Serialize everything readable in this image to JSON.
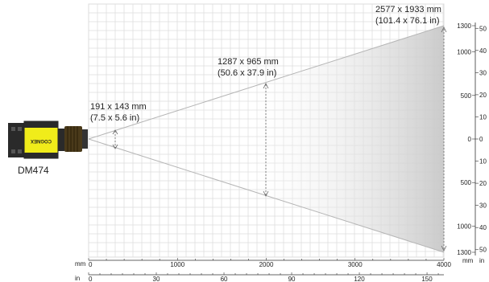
{
  "camera": {
    "model_label": "DM474",
    "brand_text": "COGNEX"
  },
  "fov_annotations": [
    {
      "distance_mm": 60,
      "size_mm": "191 x 143 mm",
      "size_in": "(7.5 x 5.6 in)"
    },
    {
      "distance_mm": 2000,
      "size_mm": "1287 x 965 mm",
      "size_in": "(50.6 x 37.9 in)"
    },
    {
      "distance_mm": 4000,
      "size_mm": "2577 x 1933 mm",
      "size_in": "(101.4 x 76.1 in)"
    }
  ],
  "bottom_axis_mm": {
    "unit_label": "mm",
    "range": [
      0,
      4000
    ],
    "ticks": [
      "0",
      "1000",
      "2000",
      "3000",
      "4000"
    ]
  },
  "bottom_axis_in": {
    "unit_label": "in",
    "ticks": [
      "0",
      "30",
      "60",
      "90",
      "120",
      "150"
    ]
  },
  "right_axis_mm": {
    "unit_label": "mm",
    "ticks_top": [
      "1300",
      "1000",
      "500",
      "0",
      "500",
      "1000",
      "1300"
    ]
  },
  "right_axis_in": {
    "unit_label": "in",
    "ticks": [
      "50",
      "40",
      "30",
      "20",
      "10",
      "0",
      "10",
      "20",
      "30",
      "40",
      "50"
    ]
  },
  "colors": {
    "grid": "#dcdcdc",
    "fov_fill_far": "#cfcfcf",
    "fov_edge": "#b5b5b5",
    "camera_body": "#f0ec1a",
    "camera_dark": "#2a2a2a",
    "lens": "#4a3a1a"
  }
}
